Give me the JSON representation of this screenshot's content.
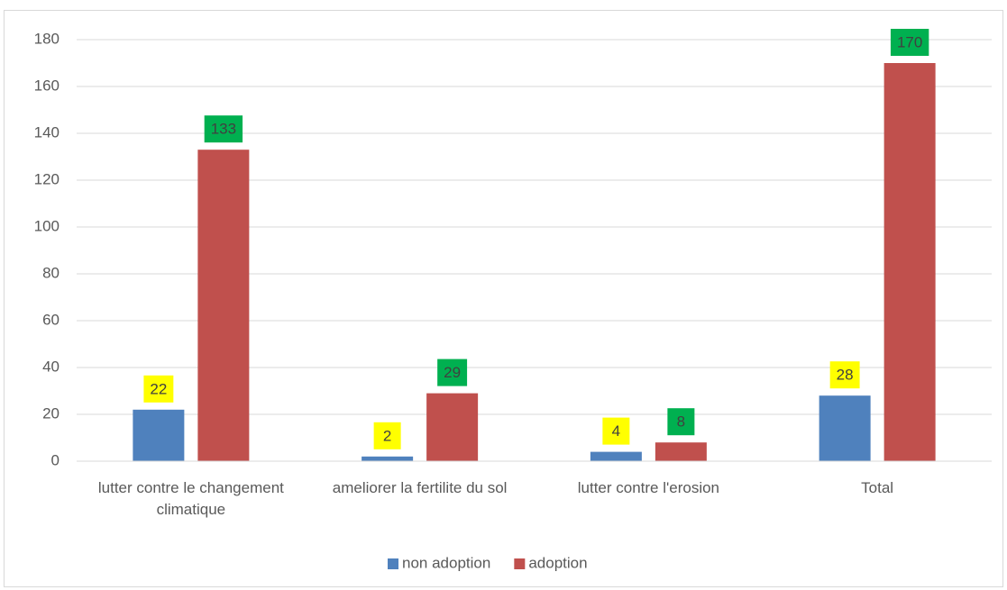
{
  "chart_data": {
    "type": "bar",
    "categories": [
      "lutter contre le changement climatique",
      "ameliorer la fertilite du sol",
      "lutter contre l'erosion",
      "Total"
    ],
    "series": [
      {
        "name": "non adoption",
        "color": "#4f81bd",
        "label_color": "#ffff00",
        "values": [
          22,
          2,
          4,
          28
        ]
      },
      {
        "name": "adoption",
        "color": "#c0504d",
        "label_color": "#00b050",
        "values": [
          133,
          29,
          8,
          170
        ]
      }
    ],
    "ylim": [
      0,
      180
    ],
    "yticks": [
      0,
      20,
      40,
      60,
      80,
      100,
      120,
      140,
      160,
      180
    ],
    "grid": true,
    "legend": "bottom"
  }
}
